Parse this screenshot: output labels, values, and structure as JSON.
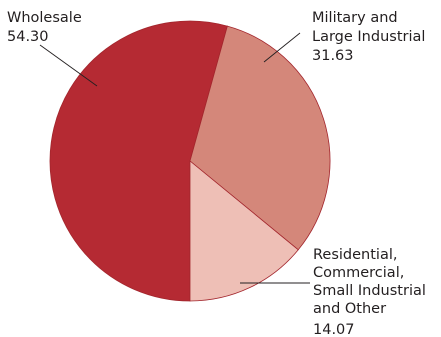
{
  "chart_data": {
    "type": "pie",
    "title": "",
    "start_angle_deg": 180,
    "direction": "clockwise",
    "slices": [
      {
        "name": "Wholesale",
        "label_lines": [
          "Wholesale"
        ],
        "value": 54.3,
        "value_label": "54.30",
        "color": "#b52a33"
      },
      {
        "name": "Military and Large Industrial",
        "label_lines": [
          "Military and",
          "Large Industrial"
        ],
        "value": 31.63,
        "value_label": "31.63",
        "color": "#d4877a"
      },
      {
        "name": "Residential, Commercial, Small Industrial and Other",
        "label_lines": [
          "Residential,",
          "Commercial,",
          "Small Industrial",
          "and Other"
        ],
        "value": 14.07,
        "value_label": "14.07",
        "color": "#eebfb6"
      }
    ]
  }
}
